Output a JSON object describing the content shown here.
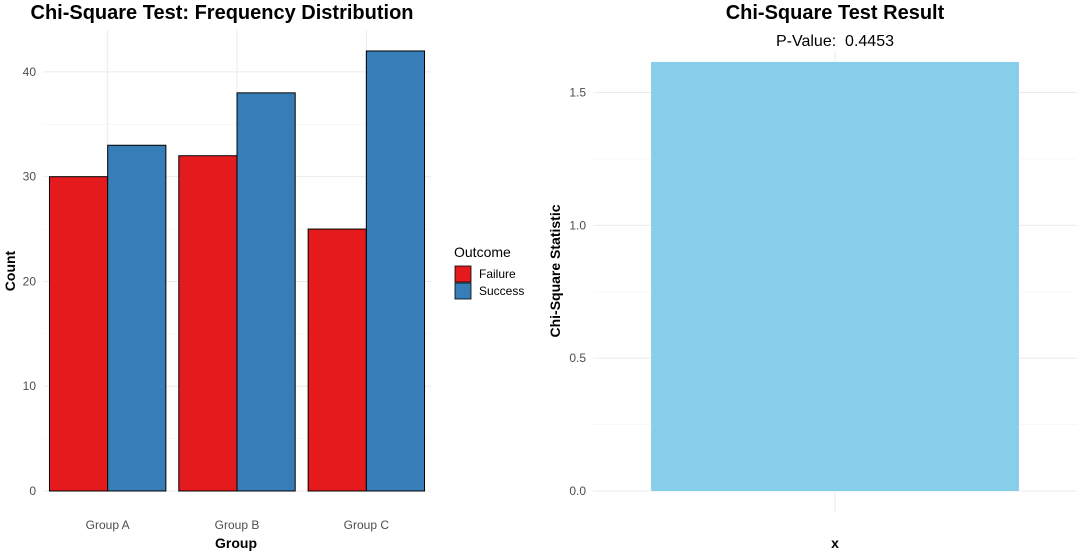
{
  "chart_data": [
    {
      "type": "bar",
      "title": "Chi-Square Test: Frequency Distribution",
      "xlabel": "Group",
      "ylabel": "Count",
      "categories": [
        "Group A",
        "Group B",
        "Group C"
      ],
      "series": [
        {
          "name": "Failure",
          "values": [
            30,
            32,
            25
          ],
          "color": "#E41A1C"
        },
        {
          "name": "Success",
          "values": [
            33,
            38,
            42
          ],
          "color": "#377EB8"
        }
      ],
      "ylim": [
        0,
        44
      ],
      "yticks": [
        "0",
        "10",
        "20",
        "30",
        "40"
      ],
      "legend": {
        "title": "Outcome",
        "placement": "right"
      },
      "grid": true
    },
    {
      "type": "bar",
      "title": "Chi-Square Test Result",
      "subtitle": "P-Value:  0.4453",
      "xlabel": "x",
      "ylabel": "Chi-Square Statistic",
      "categories": [
        ""
      ],
      "values": [
        1.615
      ],
      "color": "#87CEEB",
      "ylim": [
        0,
        1.66
      ],
      "yticks": [
        "0.0",
        "0.5",
        "1.0",
        "1.5"
      ],
      "grid": true
    }
  ]
}
